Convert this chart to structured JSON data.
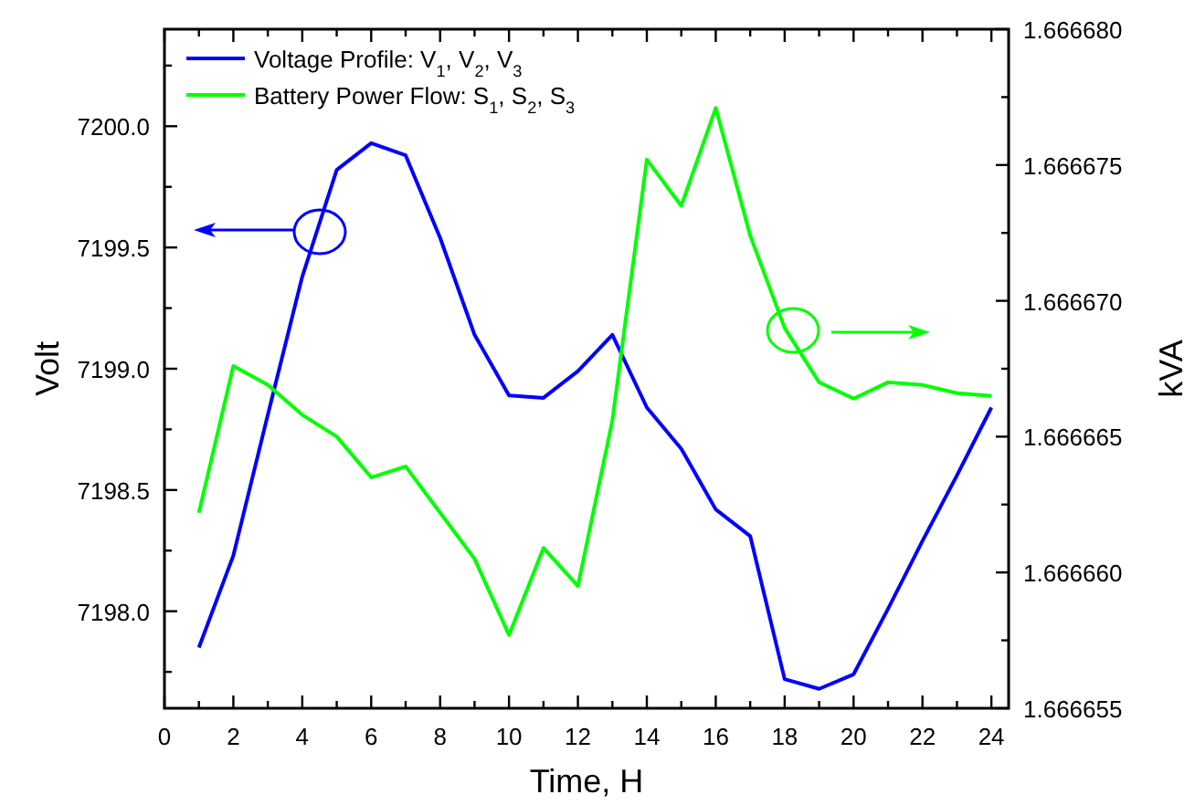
{
  "chart_data": {
    "type": "line",
    "xlabel": "Time, H",
    "ylabel": "Volt",
    "y2label": "kVA",
    "x": [
      1,
      2,
      3,
      4,
      5,
      6,
      7,
      8,
      9,
      10,
      11,
      12,
      13,
      14,
      15,
      16,
      17,
      18,
      19,
      20,
      21,
      22,
      23,
      24
    ],
    "series": [
      {
        "name": "Voltage Profile: V$_{1}$, V$_{2}$, V$_{3}$",
        "color": "#0000ff",
        "values": [
          7197.85,
          7198.23,
          7198.81,
          7199.38,
          7199.82,
          7199.93,
          7199.88,
          7199.54,
          7199.14,
          7198.89,
          7198.88,
          7198.99,
          7199.14,
          7198.84,
          7198.67,
          7198.42,
          7198.31,
          7197.72,
          7197.68,
          7197.74,
          7198.01,
          7198.29,
          7198.56,
          7198.84
        ]
      },
      {
        "name": "Battery Power Flow: S$_{1}$, S$_{2}$, S$_{3}$",
        "color": "#00ff00",
        "axis": "y2",
        "values": [
          1.6666622,
          1.6666676,
          1.6666669,
          1.6666658,
          1.666665,
          1.6666635,
          1.6666639,
          1.6666622,
          1.6666605,
          1.6666577,
          1.6666609,
          1.6666595,
          1.6666656,
          1.6666752,
          1.6666735,
          1.6666771,
          1.6666724,
          1.666669,
          1.666667,
          1.6666664,
          1.666667,
          1.6666669,
          1.6666666,
          1.6666665
        ]
      }
    ],
    "xlim": [
      0,
      24.5
    ],
    "xticks": [
      0,
      {
        "value": 1,
        "label": null
      },
      2,
      {
        "value": 3,
        "label": null
      },
      4,
      {
        "value": 5,
        "label": null
      },
      6,
      {
        "value": 7,
        "label": null
      },
      8,
      {
        "value": 9,
        "label": null
      },
      10,
      {
        "value": 11,
        "label": null
      },
      12,
      {
        "value": 13,
        "label": null
      },
      14,
      {
        "value": 15,
        "label": null
      },
      16,
      {
        "value": 17,
        "label": null
      },
      18,
      {
        "value": 19,
        "label": null
      },
      20,
      {
        "value": 21,
        "label": null
      },
      22,
      {
        "value": 23,
        "label": null
      },
      24
    ],
    "ylim": [
      7197.6,
      7200.4
    ],
    "yticks": [
      {
        "value": 7197.75,
        "label": null
      },
      {
        "value": 7198,
        "label": "7198.0"
      },
      {
        "value": 7198.25,
        "label": null
      },
      {
        "value": 7198.5,
        "label": "7198.5"
      },
      {
        "value": 7198.75,
        "label": null
      },
      {
        "value": 7199,
        "label": "7199.0"
      },
      {
        "value": 7199.25,
        "label": null
      },
      {
        "value": 7199.5,
        "label": "7199.5"
      },
      {
        "value": 7199.75,
        "label": null
      },
      {
        "value": 7200,
        "label": "7200.0"
      },
      {
        "value": 7200.25,
        "label": null
      }
    ],
    "y2lim": [
      1.666655,
      1.66668
    ],
    "y2ticks": [
      {
        "value": 1.666655,
        "label": "1.666655"
      },
      {
        "value": 1.6666575,
        "label": null
      },
      {
        "value": 1.66666,
        "label": "1.666660"
      },
      {
        "value": 1.6666625,
        "label": null
      },
      {
        "value": 1.666665,
        "label": "1.666665"
      },
      {
        "value": 1.6666675,
        "label": null
      },
      {
        "value": 1.66667,
        "label": "1.666670"
      },
      {
        "value": 1.6666725,
        "label": null
      },
      {
        "value": 1.666675,
        "label": "1.666675"
      },
      {
        "value": 1.6666775,
        "label": null
      },
      {
        "value": 1.66668,
        "label": "1.666680"
      }
    ],
    "legend": "top left",
    "grid": false,
    "marker": "none",
    "line_style": "solid"
  }
}
